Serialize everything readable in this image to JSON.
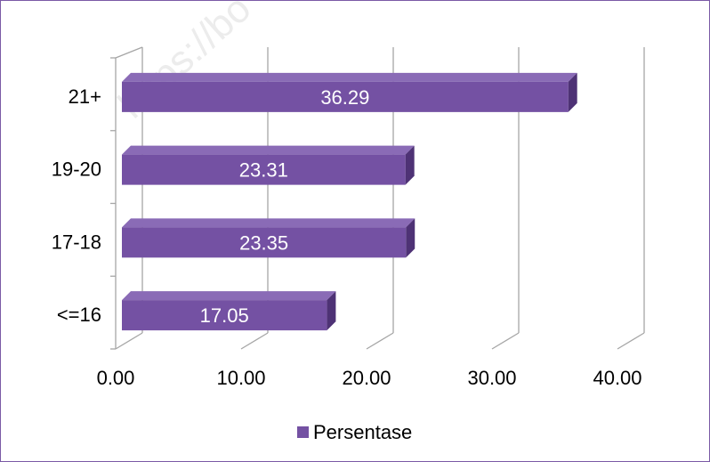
{
  "watermark_text": "https://bo",
  "chart_data": {
    "type": "bar",
    "orientation": "horizontal",
    "three_d": true,
    "categories": [
      "<=16",
      "17-18",
      "19-20",
      "21+"
    ],
    "series": [
      {
        "name": "Persentase",
        "values": [
          17.05,
          23.35,
          23.31,
          36.29
        ],
        "color": "#7451a3"
      }
    ],
    "data_labels": [
      "17.05",
      "23.35",
      "23.31",
      "36.29"
    ],
    "x_ticks": [
      "0.00",
      "10.00",
      "20.00",
      "30.00",
      "40.00"
    ],
    "xlim": [
      0,
      40
    ],
    "grid": true,
    "legend_position": "bottom"
  },
  "colors": {
    "bar_front": "#7451a3",
    "bar_top": "#8a6bb6",
    "bar_side": "#4e3275",
    "frame_border": "#7b5aa6",
    "grid": "#a6a6a6"
  }
}
